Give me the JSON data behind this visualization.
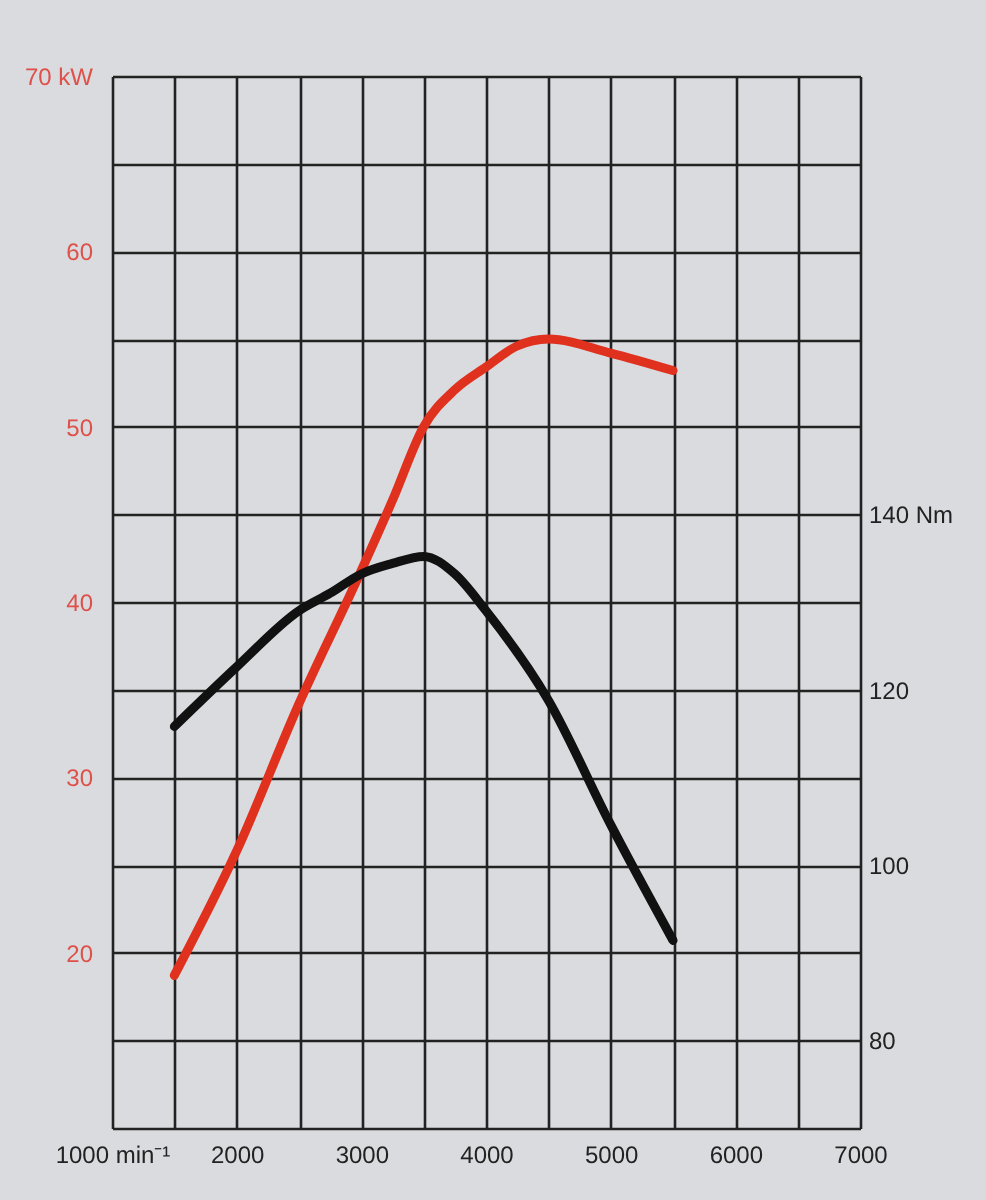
{
  "chart_data": {
    "type": "line",
    "series": [
      {
        "color": "#e0301e",
        "x": [
          1500,
          2000,
          2500,
          3000,
          3250,
          3500,
          3750,
          4000,
          4250,
          4500,
          5000,
          5500
        ],
        "values": [
          18.7,
          25.8,
          34.2,
          41.8,
          45.8,
          50.0,
          52.1,
          53.4,
          54.6,
          55.0,
          54.2,
          53.2
        ]
      },
      {
        "color": "#111111",
        "axis": "y2",
        "x": [
          1500,
          2000,
          2500,
          2750,
          3000,
          3250,
          3500,
          3750,
          4000,
          4500,
          5000,
          5500
        ],
        "values": [
          115.8,
          122.6,
          129,
          131,
          133.2,
          134.4,
          135.2,
          133.2,
          129,
          118.8,
          104.6,
          91.4
        ]
      }
    ],
    "xlim": [
      1000,
      7000
    ],
    "xticks": [
      {
        "value": 1000,
        "label": "1000 min⁻¹"
      },
      {
        "value": 1500,
        "label": null
      },
      2000,
      {
        "value": 2500,
        "label": null
      },
      3000,
      {
        "value": 3500,
        "label": null
      },
      4000,
      {
        "value": 4500,
        "label": null
      },
      5000,
      {
        "value": 5500,
        "label": null
      },
      6000,
      {
        "value": 6500,
        "label": null
      },
      7000
    ],
    "ylim": [
      10,
      70
    ],
    "yticks": [
      {
        "value": 10,
        "label": null
      },
      {
        "value": 15,
        "label": null
      },
      20,
      {
        "value": 25,
        "label": null
      },
      30,
      {
        "value": 35,
        "label": null
      },
      40,
      {
        "value": 45,
        "label": null
      },
      50,
      {
        "value": 55,
        "label": null
      },
      60,
      {
        "value": 65,
        "label": null
      },
      {
        "value": 70,
        "label": "70 kW"
      }
    ],
    "y2lim": [
      70,
      190
    ],
    "y2ticks": [
      80,
      100,
      120,
      {
        "value": 140,
        "label": "140 Nm"
      }
    ],
    "grid": true
  }
}
